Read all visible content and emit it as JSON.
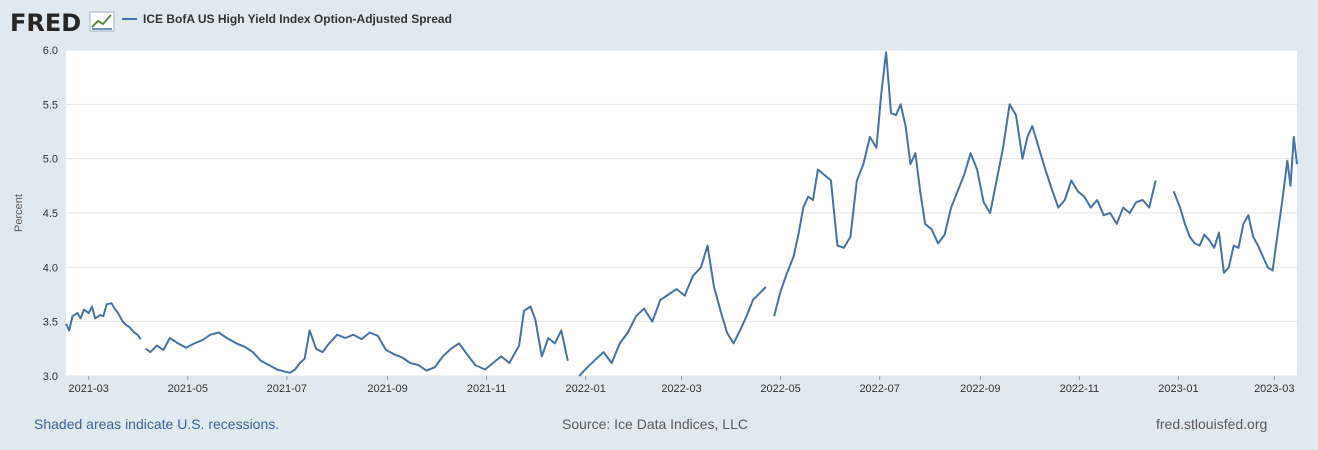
{
  "brand": {
    "name": "FRED"
  },
  "footer": {
    "note": "Shaded areas indicate U.S. recessions.",
    "source": "Source: Ice Data Indices, LLC",
    "site": "fred.stlouisfed.org"
  },
  "colors": {
    "series": "#4572a7",
    "background": "#e1e9f0",
    "plot": "#ffffff",
    "grid": "#e6e6e6"
  },
  "chart_data": {
    "type": "line",
    "title": "",
    "xlabel": "",
    "ylabel": "Percent",
    "ylim": [
      3.0,
      6.0
    ],
    "xlim": [
      "2021-02-15",
      "2023-03-15"
    ],
    "grid": true,
    "legend": "top-left",
    "y_ticks": [
      "3.0",
      "3.5",
      "4.0",
      "4.5",
      "5.0",
      "5.5",
      "6.0"
    ],
    "x_ticks": [
      {
        "date": "2021-03-01",
        "label": "2021-03"
      },
      {
        "date": "2021-05-01",
        "label": "2021-05"
      },
      {
        "date": "2021-07-01",
        "label": "2021-07"
      },
      {
        "date": "2021-09-01",
        "label": "2021-09"
      },
      {
        "date": "2021-11-01",
        "label": "2021-11"
      },
      {
        "date": "2022-01-01",
        "label": "2022-01"
      },
      {
        "date": "2022-03-01",
        "label": "2022-03"
      },
      {
        "date": "2022-05-01",
        "label": "2022-05"
      },
      {
        "date": "2022-07-01",
        "label": "2022-07"
      },
      {
        "date": "2022-09-01",
        "label": "2022-09"
      },
      {
        "date": "2022-11-01",
        "label": "2022-11"
      },
      {
        "date": "2023-01-01",
        "label": "2023-01"
      },
      {
        "date": "2023-03-01",
        "label": "2023-03"
      }
    ],
    "series": [
      {
        "name": "ICE BofA US High Yield Index Option-Adjusted Spread",
        "segments": [
          {
            "x": [
              "2021-02-15",
              "2021-02-17",
              "2021-02-19",
              "2021-02-22",
              "2021-02-24",
              "2021-02-26",
              "2021-03-01",
              "2021-03-03",
              "2021-03-05",
              "2021-03-08",
              "2021-03-10",
              "2021-03-12",
              "2021-03-15",
              "2021-03-17",
              "2021-03-19",
              "2021-03-22",
              "2021-03-24",
              "2021-03-26",
              "2021-03-29",
              "2021-03-31",
              "2021-04-02"
            ],
            "y": [
              3.48,
              3.42,
              3.55,
              3.58,
              3.53,
              3.61,
              3.58,
              3.64,
              3.53,
              3.56,
              3.55,
              3.66,
              3.67,
              3.62,
              3.58,
              3.5,
              3.47,
              3.45,
              3.4,
              3.38,
              3.34
            ]
          },
          {
            "x": [
              "2021-04-05",
              "2021-04-08",
              "2021-04-12",
              "2021-04-16",
              "2021-04-20",
              "2021-04-25",
              "2021-04-30",
              "2021-05-05",
              "2021-05-10",
              "2021-05-15",
              "2021-05-20",
              "2021-05-25",
              "2021-05-31",
              "2021-06-05",
              "2021-06-10",
              "2021-06-15",
              "2021-06-20",
              "2021-06-25",
              "2021-06-30",
              "2021-07-03",
              "2021-07-06",
              "2021-07-09",
              "2021-07-12",
              "2021-07-15",
              "2021-07-19",
              "2021-07-23",
              "2021-07-27",
              "2021-08-01",
              "2021-08-06",
              "2021-08-11",
              "2021-08-16",
              "2021-08-21",
              "2021-08-26",
              "2021-08-31",
              "2021-09-05",
              "2021-09-10",
              "2021-09-15",
              "2021-09-20",
              "2021-09-25",
              "2021-09-30",
              "2021-10-05",
              "2021-10-10",
              "2021-10-15",
              "2021-10-20",
              "2021-10-25",
              "2021-10-31",
              "2021-11-05",
              "2021-11-10",
              "2021-11-15",
              "2021-11-18",
              "2021-11-21",
              "2021-11-24",
              "2021-11-28",
              "2021-12-01",
              "2021-12-05",
              "2021-12-09",
              "2021-12-13",
              "2021-12-17",
              "2021-12-21"
            ],
            "y": [
              3.25,
              3.22,
              3.28,
              3.24,
              3.35,
              3.3,
              3.26,
              3.3,
              3.33,
              3.38,
              3.4,
              3.35,
              3.3,
              3.27,
              3.22,
              3.14,
              3.1,
              3.06,
              3.04,
              3.03,
              3.06,
              3.12,
              3.16,
              3.42,
              3.25,
              3.22,
              3.3,
              3.38,
              3.35,
              3.38,
              3.34,
              3.4,
              3.37,
              3.24,
              3.2,
              3.17,
              3.12,
              3.1,
              3.05,
              3.08,
              3.18,
              3.25,
              3.3,
              3.2,
              3.1,
              3.06,
              3.12,
              3.18,
              3.12,
              3.2,
              3.28,
              3.6,
              3.64,
              3.52,
              3.18,
              3.35,
              3.3,
              3.42,
              3.14
            ]
          },
          {
            "x": [
              "2021-12-28",
              "2022-01-02",
              "2022-01-07",
              "2022-01-12",
              "2022-01-17",
              "2022-01-22",
              "2022-01-27",
              "2022-02-01",
              "2022-02-06",
              "2022-02-11",
              "2022-02-16",
              "2022-02-21",
              "2022-02-26",
              "2022-03-03",
              "2022-03-08",
              "2022-03-13",
              "2022-03-17",
              "2022-03-21",
              "2022-03-25",
              "2022-03-29",
              "2022-04-02",
              "2022-04-06",
              "2022-04-10",
              "2022-04-14",
              "2022-04-18",
              "2022-04-22"
            ],
            "y": [
              3.0,
              3.08,
              3.15,
              3.22,
              3.12,
              3.3,
              3.4,
              3.55,
              3.62,
              3.5,
              3.7,
              3.75,
              3.8,
              3.74,
              3.92,
              4.0,
              4.2,
              3.82,
              3.6,
              3.4,
              3.3,
              3.42,
              3.55,
              3.7,
              3.76,
              3.82
            ]
          },
          {
            "x": [
              "2022-04-27",
              "2022-05-01",
              "2022-05-05",
              "2022-05-09",
              "2022-05-12",
              "2022-05-15",
              "2022-05-18",
              "2022-05-21",
              "2022-05-24",
              "2022-05-28",
              "2022-06-01",
              "2022-06-05",
              "2022-06-09",
              "2022-06-13",
              "2022-06-17",
              "2022-06-21",
              "2022-06-25",
              "2022-06-29",
              "2022-07-02",
              "2022-07-05",
              "2022-07-08",
              "2022-07-11",
              "2022-07-14",
              "2022-07-17",
              "2022-07-20",
              "2022-07-23",
              "2022-07-26",
              "2022-07-29",
              "2022-08-02",
              "2022-08-06",
              "2022-08-10",
              "2022-08-14",
              "2022-08-18",
              "2022-08-22",
              "2022-08-26",
              "2022-08-30",
              "2022-09-03",
              "2022-09-07",
              "2022-09-11",
              "2022-09-15",
              "2022-09-19",
              "2022-09-23",
              "2022-09-27",
              "2022-09-30",
              "2022-10-03",
              "2022-10-07",
              "2022-10-11",
              "2022-10-15",
              "2022-10-19",
              "2022-10-23",
              "2022-10-27",
              "2022-10-31",
              "2022-11-04",
              "2022-11-08",
              "2022-11-12",
              "2022-11-16",
              "2022-11-20",
              "2022-11-24",
              "2022-11-28",
              "2022-12-02",
              "2022-12-06",
              "2022-12-10",
              "2022-12-14",
              "2022-12-18"
            ],
            "y": [
              3.55,
              3.78,
              3.95,
              4.1,
              4.3,
              4.55,
              4.65,
              4.62,
              4.9,
              4.85,
              4.8,
              4.2,
              4.18,
              4.28,
              4.8,
              4.95,
              5.2,
              5.1,
              5.6,
              5.98,
              5.42,
              5.4,
              5.5,
              5.3,
              4.95,
              5.05,
              4.7,
              4.4,
              4.35,
              4.22,
              4.3,
              4.55,
              4.7,
              4.85,
              5.05,
              4.9,
              4.6,
              4.5,
              4.8,
              5.1,
              5.5,
              5.4,
              5.0,
              5.2,
              5.3,
              5.1,
              4.9,
              4.72,
              4.55,
              4.62,
              4.8,
              4.7,
              4.65,
              4.55,
              4.62,
              4.48,
              4.5,
              4.4,
              4.55,
              4.5,
              4.6,
              4.62,
              4.55,
              4.8
            ]
          },
          {
            "x": [
              "2022-12-29",
              "2023-01-02",
              "2023-01-05",
              "2023-01-08",
              "2023-01-11",
              "2023-01-14",
              "2023-01-17",
              "2023-01-20",
              "2023-01-23",
              "2023-01-26",
              "2023-01-29",
              "2023-02-01",
              "2023-02-04",
              "2023-02-07",
              "2023-02-10",
              "2023-02-13",
              "2023-02-16",
              "2023-02-19",
              "2023-02-22",
              "2023-02-25",
              "2023-02-28",
              "2023-03-03",
              "2023-03-06",
              "2023-03-09",
              "2023-03-11",
              "2023-03-13",
              "2023-03-15"
            ],
            "y": [
              4.7,
              4.55,
              4.4,
              4.28,
              4.22,
              4.2,
              4.3,
              4.25,
              4.18,
              4.32,
              3.95,
              4.0,
              4.2,
              4.18,
              4.4,
              4.48,
              4.28,
              4.2,
              4.1,
              4.0,
              3.97,
              4.3,
              4.62,
              4.98,
              4.75,
              5.2,
              4.95
            ]
          }
        ]
      }
    ]
  }
}
